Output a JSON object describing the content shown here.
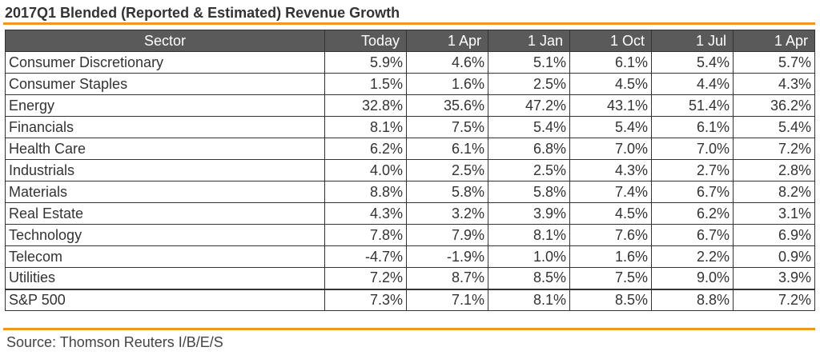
{
  "title": "2017Q1 Blended (Reported & Estimated) Revenue Growth",
  "colors": {
    "accent": "#f0951e",
    "header_bg": "#5a5a5a"
  },
  "table": {
    "headers": [
      "Sector",
      "Today",
      "1 Apr",
      "1 Jan",
      "1 Oct",
      "1 Jul",
      "1 Apr"
    ],
    "rows": [
      [
        "Consumer Discretionary",
        "5.9%",
        "4.6%",
        "5.1%",
        "6.1%",
        "5.4%",
        "5.7%"
      ],
      [
        "Consumer Staples",
        "1.5%",
        "1.6%",
        "2.5%",
        "4.5%",
        "4.4%",
        "4.3%"
      ],
      [
        "Energy",
        "32.8%",
        "35.6%",
        "47.2%",
        "43.1%",
        "51.4%",
        "36.2%"
      ],
      [
        "Financials",
        "8.1%",
        "7.5%",
        "5.4%",
        "5.4%",
        "6.1%",
        "5.4%"
      ],
      [
        "Health Care",
        "6.2%",
        "6.1%",
        "6.8%",
        "7.0%",
        "7.0%",
        "7.2%"
      ],
      [
        "Industrials",
        "4.0%",
        "2.5%",
        "2.5%",
        "4.3%",
        "2.7%",
        "2.8%"
      ],
      [
        "Materials",
        "8.8%",
        "5.8%",
        "5.8%",
        "7.4%",
        "6.7%",
        "8.2%"
      ],
      [
        "Real Estate",
        "4.3%",
        "3.2%",
        "3.9%",
        "4.5%",
        "6.2%",
        "3.1%"
      ],
      [
        "Technology",
        "7.8%",
        "7.9%",
        "8.1%",
        "7.6%",
        "6.7%",
        "6.9%"
      ],
      [
        "Telecom",
        "-4.7%",
        "-1.9%",
        "1.0%",
        "1.6%",
        "2.2%",
        "0.9%"
      ],
      [
        "Utilities",
        "7.2%",
        "8.7%",
        "8.5%",
        "7.5%",
        "9.0%",
        "3.9%"
      ]
    ],
    "total": [
      "S&P 500",
      "7.3%",
      "7.1%",
      "8.1%",
      "8.5%",
      "8.8%",
      "7.2%"
    ]
  },
  "source": "Source: Thomson Reuters I/B/E/S"
}
